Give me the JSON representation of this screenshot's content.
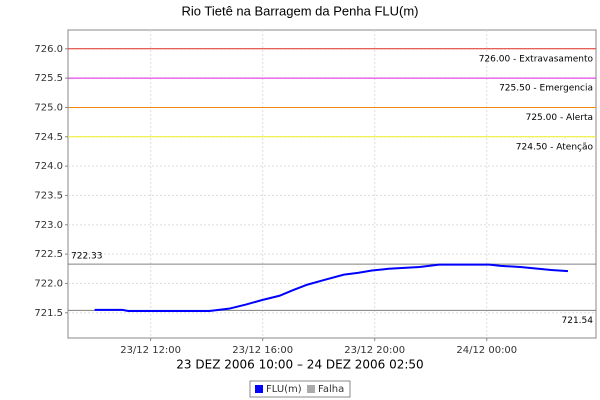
{
  "chart_data": {
    "type": "line",
    "title": "Rio Tietê na Barragem da Penha FLU(m)",
    "x_label": "23 DEZ 2006 10:00 – 24 DEZ 2006 02:50",
    "x": [
      10.0,
      11.0,
      11.2,
      14.1,
      14.8,
      15.4,
      16.0,
      16.6,
      17.1,
      17.6,
      18.2,
      18.9,
      19.4,
      19.9,
      20.5,
      21.6,
      22.3,
      24.1,
      24.5,
      25.2,
      26.3,
      26.9
    ],
    "series": [
      {
        "name": "FLU(m)",
        "color": "#0000ff",
        "values": [
          721.55,
          721.55,
          721.53,
          721.53,
          721.57,
          721.64,
          721.72,
          721.79,
          721.89,
          721.98,
          722.06,
          722.15,
          722.18,
          722.22,
          722.25,
          722.28,
          722.32,
          722.32,
          722.3,
          722.28,
          722.23,
          722.21
        ]
      },
      {
        "name": "Falha",
        "color": "#aaaaaa",
        "values": [
          null,
          null,
          null,
          null,
          null,
          null,
          null,
          null,
          null,
          null,
          null,
          null,
          null,
          null,
          null,
          null,
          null,
          null,
          null,
          null,
          null,
          null
        ]
      }
    ],
    "xlim": [
      9.05,
      27.9
    ],
    "xticks": [
      {
        "value": 12,
        "label": "23/12 12:00"
      },
      {
        "value": 16,
        "label": "23/12 16:00"
      },
      {
        "value": 20,
        "label": "23/12 20:00"
      },
      {
        "value": 24,
        "label": "24/12 00:00"
      }
    ],
    "ylim": [
      721.07,
      726.32
    ],
    "yticks": [
      721.5,
      {
        "value": 722,
        "label": "722.0"
      },
      722.5,
      {
        "value": 723,
        "label": "723.0"
      },
      723.5,
      {
        "value": 724,
        "label": "724.0"
      },
      724.5,
      {
        "value": 725,
        "label": "725.0"
      },
      725.5,
      {
        "value": 726,
        "label": "726.0"
      }
    ],
    "grid": true,
    "markers": [
      {
        "value": 726,
        "label": "726.00 - Extravasamento",
        "color": "#e03020",
        "side": "right"
      },
      {
        "value": 725.5,
        "label": "725.50 - Emergencia",
        "color": "#e020e0",
        "side": "right"
      },
      {
        "value": 725,
        "label": "725.00 - Alerta",
        "color": "#f08a10",
        "side": "right"
      },
      {
        "value": 724.5,
        "label": "724.50 - Atenção",
        "color": "#f0f020",
        "side": "right"
      },
      {
        "value": 722.33,
        "label": "722.33",
        "color": "#808080",
        "side": "left"
      },
      {
        "value": 721.54,
        "label": "721.54",
        "color": "#808080",
        "side": "right"
      }
    ]
  }
}
